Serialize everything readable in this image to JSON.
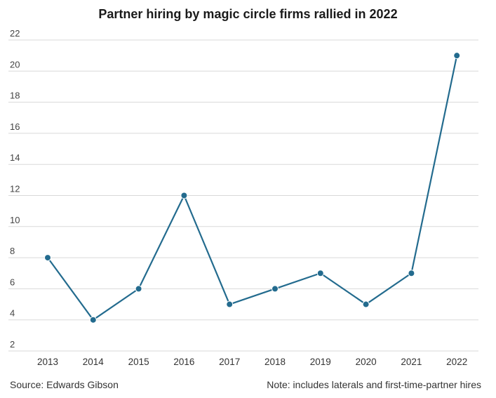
{
  "chart_data": {
    "type": "line",
    "title": "Partner hiring by magic circle firms rallied in 2022",
    "xlabel": "",
    "ylabel": "",
    "categories": [
      "2013",
      "2014",
      "2015",
      "2016",
      "2017",
      "2018",
      "2019",
      "2020",
      "2021",
      "2022"
    ],
    "series": [
      {
        "values": [
          8,
          4,
          6,
          12,
          5,
          6,
          7,
          5,
          7,
          21
        ]
      }
    ],
    "ylim": [
      2,
      22
    ],
    "yticks": [
      2,
      4,
      6,
      8,
      10,
      12,
      14,
      16,
      18,
      20,
      22
    ],
    "grid": true,
    "legend": "none",
    "line_color": "#236b8e",
    "grid_color": "#d9d9d9"
  },
  "footer": {
    "source": "Source: Edwards Gibson",
    "note": "Note: includes laterals and first-time-partner hires"
  }
}
